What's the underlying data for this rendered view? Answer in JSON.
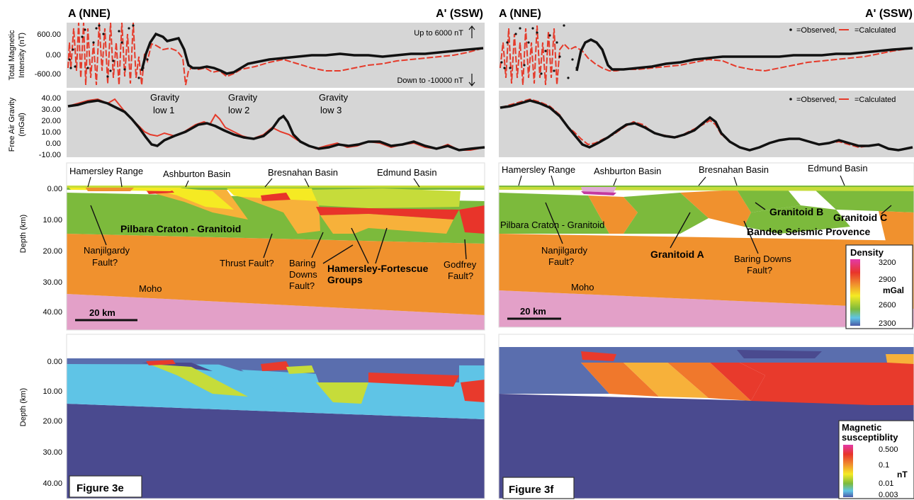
{
  "panels": {
    "left": {
      "endpoint_a": "A (NNE)",
      "endpoint_b": "A' (SSW)",
      "mag_axis_label_1": "Total Magnetic",
      "mag_axis_label_2": "Intensity (nT)",
      "mag_ticks": [
        "600.00",
        "0.00",
        "-600.00"
      ],
      "mag_note_up": "Up to 6000 nT",
      "mag_note_down": "Down to -10000 nT",
      "grav_axis_label_1": "Free Air Gravity",
      "grav_axis_label_2": "(mGal)",
      "grav_ticks": [
        "40.00",
        "30.00",
        "20.00",
        "10.00",
        "0.00",
        "-10.00"
      ],
      "gravity_lows": [
        {
          "line1": "Gravity",
          "line2": "low 1"
        },
        {
          "line1": "Gravity",
          "line2": "low 2"
        },
        {
          "line1": "Gravity",
          "line2": "low 3"
        }
      ],
      "basins": [
        "Hamersley Range",
        "Ashburton Basin",
        "Bresnahan Basin",
        "Edmund Basin"
      ],
      "depth_label": "Depth (km)",
      "depth_ticks": [
        "0.00",
        "10.00",
        "20.00",
        "30.00",
        "40.00"
      ],
      "labels": {
        "craton": "Pilbara Craton - Granitoid",
        "nanjilgardy_1": "Nanjilgardy",
        "nanjilgardy_2": "Fault?",
        "thrust": "Thrust Fault?",
        "baring_1": "Baring",
        "baring_2": "Downs",
        "baring_3": "Fault?",
        "hamersley_1": "Hamersley-Fortescue",
        "hamersley_2": "Groups",
        "godfrey_1": "Godfrey",
        "godfrey_2": "Fault?",
        "moho": "Moho",
        "scale": "20 km"
      },
      "mag_depth_ticks": [
        "0.00",
        "10.00",
        "20.00",
        "30.00",
        "40.00"
      ],
      "figure_label": "Figure 3e"
    },
    "right": {
      "endpoint_a": "A (NNE)",
      "endpoint_b": "A' (SSW)",
      "legend_observed": "=Observed,",
      "legend_calculated": "=Calculated",
      "basins": [
        "Hamersley Range",
        "Ashburton Basin",
        "Bresnahan Basin",
        "Edmund Basin"
      ],
      "labels": {
        "craton": "Pilbara Craton - Granitoid",
        "nanjilgardy_1": "Nanjilgardy",
        "nanjilgardy_2": "Fault?",
        "granitoid_a": "Granitoid A",
        "granitoid_b": "Granitoid B",
        "granitoid_c": "Granitoid C",
        "bandee": "Bandee Seismic Provence",
        "baring_1": "Baring Downs",
        "baring_2": "Fault?",
        "moho": "Moho",
        "scale": "20 km"
      },
      "density_legend": {
        "title": "Density",
        "ticks": [
          "3200",
          "2900",
          "2600",
          "2300"
        ],
        "unit": "mGal"
      },
      "mag_legend": {
        "title_1": "Magnetic",
        "title_2": "susceptiblity",
        "ticks": [
          "0.500",
          "0.1",
          "0.01",
          "0.003"
        ],
        "unit": "nT"
      },
      "figure_label": "Figure 3f"
    }
  },
  "colors": {
    "panel_gray": "#d6d6d6",
    "observed": "#111111",
    "calculated": "#e53a2a",
    "mantle_pink": "#e3a0c8",
    "crust_orange": "#f0912e",
    "granitoid_green": "#7cba3c",
    "yellow_green": "#c6dc3a",
    "yellow": "#f5ea23",
    "light_orange": "#f7b13a",
    "red": "#e8342a",
    "mag_navy": "#4a4a8f",
    "mag_blue": "#5a6eae",
    "mag_cyan": "#5fc4e6",
    "mag_red": "#e83a2c",
    "mag_orange": "#f0782c"
  }
}
